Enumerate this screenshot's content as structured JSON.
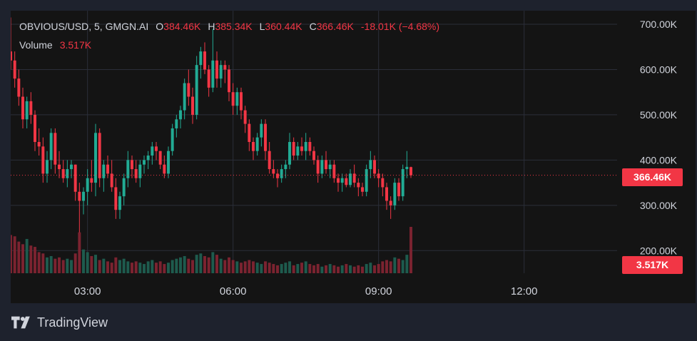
{
  "legend": {
    "symbol": "OBVIOUS/USD, 5, GMGN.AI",
    "open_label": "O",
    "open": "384.46K",
    "high_label": "H",
    "high": "385.34K",
    "low_label": "L",
    "low": "360.44K",
    "close_label": "C",
    "close": "366.46K",
    "change": "-18.01K (−4.68%)",
    "volume_label": "Volume",
    "volume": "3.517K"
  },
  "price_tag": "366.46K",
  "volume_tag": "3.517K",
  "logo_text": "TradingView",
  "colors": {
    "up": "#22ab94",
    "down": "#f23645",
    "up_vol": "#1e5b4e",
    "down_vol": "#7b2330",
    "grid": "#2a2e39",
    "text": "#d1d4dc",
    "background": "#141414",
    "frame": "#1e222d"
  },
  "chart_data": {
    "type": "candlestick",
    "title": "OBVIOUS/USD, 5, GMGN.AI",
    "interval_minutes": 5,
    "x_ticks": [
      "03:00",
      "06:00",
      "09:00",
      "12:00"
    ],
    "x_range": [
      "01:25",
      "13:55"
    ],
    "y_ticks": [
      {
        "value": 700000,
        "label": "700.00K"
      },
      {
        "value": 600000,
        "label": "600.00K"
      },
      {
        "value": 500000,
        "label": "500.00K"
      },
      {
        "value": 400000,
        "label": "400.00K"
      },
      {
        "value": 300000,
        "label": "300.00K"
      },
      {
        "value": 200000,
        "label": "200.00K"
      }
    ],
    "ylim": [
      150000,
      730000
    ],
    "last_price": 366460,
    "first_time": "01:25",
    "ohlc": [
      [
        640000,
        715000,
        600000,
        620000
      ],
      [
        620000,
        640000,
        560000,
        580000
      ],
      [
        580000,
        600000,
        520000,
        540000
      ],
      [
        540000,
        560000,
        470000,
        490000
      ],
      [
        490000,
        540000,
        470000,
        530000
      ],
      [
        530000,
        550000,
        480000,
        500000
      ],
      [
        500000,
        510000,
        420000,
        440000
      ],
      [
        440000,
        470000,
        410000,
        430000
      ],
      [
        430000,
        450000,
        350000,
        370000
      ],
      [
        370000,
        420000,
        350000,
        400000
      ],
      [
        400000,
        470000,
        380000,
        460000
      ],
      [
        460000,
        470000,
        370000,
        390000
      ],
      [
        390000,
        420000,
        360000,
        380000
      ],
      [
        380000,
        400000,
        350000,
        360000
      ],
      [
        360000,
        400000,
        340000,
        380000
      ],
      [
        380000,
        400000,
        360000,
        390000
      ],
      [
        390000,
        390000,
        310000,
        330000
      ],
      [
        330000,
        350000,
        240000,
        310000
      ],
      [
        310000,
        340000,
        280000,
        330000
      ],
      [
        330000,
        380000,
        300000,
        360000
      ],
      [
        360000,
        400000,
        330000,
        350000
      ],
      [
        350000,
        480000,
        320000,
        460000
      ],
      [
        460000,
        470000,
        340000,
        360000
      ],
      [
        360000,
        400000,
        330000,
        390000
      ],
      [
        390000,
        410000,
        360000,
        370000
      ],
      [
        370000,
        400000,
        330000,
        340000
      ],
      [
        340000,
        360000,
        270000,
        290000
      ],
      [
        290000,
        330000,
        270000,
        320000
      ],
      [
        320000,
        370000,
        300000,
        360000
      ],
      [
        360000,
        420000,
        340000,
        400000
      ],
      [
        400000,
        410000,
        360000,
        380000
      ],
      [
        380000,
        400000,
        350000,
        360000
      ],
      [
        360000,
        400000,
        340000,
        390000
      ],
      [
        390000,
        410000,
        370000,
        400000
      ],
      [
        400000,
        420000,
        380000,
        410000
      ],
      [
        410000,
        440000,
        390000,
        430000
      ],
      [
        430000,
        440000,
        400000,
        420000
      ],
      [
        420000,
        420000,
        380000,
        390000
      ],
      [
        390000,
        410000,
        360000,
        370000
      ],
      [
        370000,
        430000,
        360000,
        420000
      ],
      [
        420000,
        480000,
        410000,
        470000
      ],
      [
        470000,
        500000,
        450000,
        490000
      ],
      [
        490000,
        520000,
        470000,
        510000
      ],
      [
        510000,
        580000,
        490000,
        570000
      ],
      [
        570000,
        600000,
        520000,
        540000
      ],
      [
        540000,
        560000,
        480000,
        500000
      ],
      [
        500000,
        630000,
        490000,
        610000
      ],
      [
        610000,
        650000,
        580000,
        640000
      ],
      [
        640000,
        660000,
        590000,
        600000
      ],
      [
        600000,
        610000,
        540000,
        560000
      ],
      [
        560000,
        690000,
        550000,
        620000
      ],
      [
        620000,
        640000,
        560000,
        580000
      ],
      [
        580000,
        620000,
        560000,
        610000
      ],
      [
        610000,
        620000,
        570000,
        600000
      ],
      [
        600000,
        610000,
        530000,
        550000
      ],
      [
        550000,
        570000,
        500000,
        520000
      ],
      [
        520000,
        560000,
        500000,
        550000
      ],
      [
        550000,
        560000,
        490000,
        510000
      ],
      [
        510000,
        520000,
        460000,
        480000
      ],
      [
        480000,
        490000,
        420000,
        440000
      ],
      [
        440000,
        450000,
        400000,
        420000
      ],
      [
        420000,
        460000,
        410000,
        450000
      ],
      [
        450000,
        490000,
        430000,
        480000
      ],
      [
        480000,
        490000,
        400000,
        420000
      ],
      [
        420000,
        440000,
        370000,
        380000
      ],
      [
        380000,
        400000,
        360000,
        370000
      ],
      [
        370000,
        380000,
        340000,
        360000
      ],
      [
        360000,
        390000,
        350000,
        380000
      ],
      [
        380000,
        400000,
        360000,
        390000
      ],
      [
        390000,
        460000,
        380000,
        440000
      ],
      [
        440000,
        450000,
        400000,
        410000
      ],
      [
        410000,
        440000,
        400000,
        430000
      ],
      [
        430000,
        450000,
        410000,
        420000
      ],
      [
        420000,
        460000,
        400000,
        440000
      ],
      [
        440000,
        450000,
        410000,
        420000
      ],
      [
        420000,
        430000,
        390000,
        400000
      ],
      [
        400000,
        410000,
        350000,
        370000
      ],
      [
        370000,
        410000,
        360000,
        400000
      ],
      [
        400000,
        420000,
        370000,
        380000
      ],
      [
        380000,
        400000,
        360000,
        390000
      ],
      [
        390000,
        400000,
        350000,
        360000
      ],
      [
        360000,
        370000,
        330000,
        350000
      ],
      [
        350000,
        370000,
        330000,
        360000
      ],
      [
        360000,
        370000,
        340000,
        345000
      ],
      [
        345000,
        380000,
        340000,
        370000
      ],
      [
        370000,
        390000,
        340000,
        350000
      ],
      [
        350000,
        360000,
        320000,
        340000
      ],
      [
        340000,
        350000,
        320000,
        330000
      ],
      [
        330000,
        390000,
        320000,
        380000
      ],
      [
        380000,
        420000,
        360000,
        400000
      ],
      [
        400000,
        410000,
        360000,
        370000
      ],
      [
        370000,
        380000,
        340000,
        360000
      ],
      [
        360000,
        370000,
        320000,
        340000
      ],
      [
        340000,
        350000,
        290000,
        310000
      ],
      [
        310000,
        320000,
        270000,
        300000
      ],
      [
        300000,
        360000,
        290000,
        350000
      ],
      [
        350000,
        360000,
        310000,
        320000
      ],
      [
        320000,
        390000,
        310000,
        380000
      ],
      [
        380000,
        420000,
        360000,
        385000
      ],
      [
        384460,
        385340,
        360440,
        366460
      ]
    ],
    "volume": [
      2.9,
      2.8,
      2.4,
      2.2,
      2.6,
      2.1,
      2.0,
      1.6,
      1.5,
      1.2,
      1.3,
      1.1,
      1.2,
      1.0,
      1.1,
      1.0,
      1.5,
      3.1,
      1.8,
      1.6,
      1.3,
      1.4,
      1.0,
      1.1,
      0.9,
      0.8,
      1.2,
      1.0,
      1.1,
      0.9,
      0.8,
      0.9,
      0.8,
      0.7,
      0.9,
      1.0,
      0.8,
      0.9,
      0.7,
      0.8,
      1.0,
      1.1,
      1.2,
      1.3,
      1.1,
      1.0,
      1.4,
      1.5,
      1.3,
      1.2,
      1.6,
      1.4,
      1.1,
      1.0,
      1.2,
      1.0,
      0.9,
      0.8,
      0.9,
      1.0,
      0.9,
      0.8,
      0.7,
      0.9,
      0.8,
      0.7,
      0.6,
      0.7,
      0.8,
      0.9,
      0.6,
      0.7,
      0.8,
      0.9,
      0.7,
      0.6,
      0.7,
      0.5,
      0.6,
      0.7,
      0.6,
      0.5,
      0.6,
      0.7,
      0.6,
      0.5,
      0.6,
      0.5,
      0.7,
      0.8,
      0.6,
      0.7,
      0.9,
      1.0,
      0.9,
      1.2,
      1.1,
      1.0,
      1.4,
      3.517
    ]
  }
}
